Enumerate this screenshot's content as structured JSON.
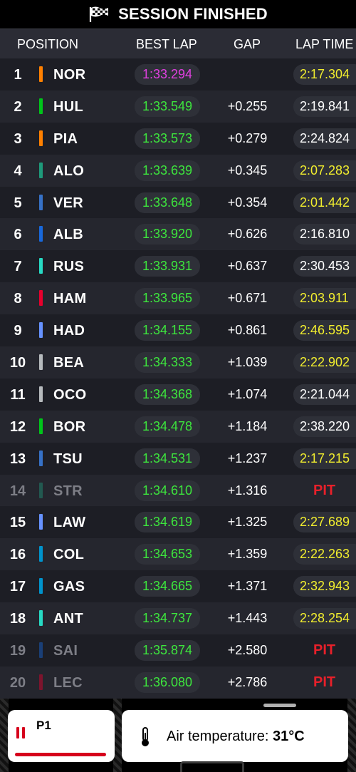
{
  "header": {
    "title": "SESSION FINISHED",
    "icon": "checkered-flag-icon",
    "columns": {
      "position": "POSITION",
      "best_lap": "BEST LAP",
      "gap": "GAP",
      "lap_time": "LAP TIME"
    }
  },
  "colors": {
    "best_lap_purple": "#e040e0",
    "personal_green": "#3de63d",
    "sector_yellow": "#f2ee2e",
    "pit_red": "#e8202a"
  },
  "drivers": [
    {
      "pos": "1",
      "code": "NOR",
      "team_color": "#ff8000",
      "best_lap": "1:33.294",
      "best_color": "purple",
      "gap": "",
      "lap_time": "2:17.304",
      "lap_color": "yellow",
      "pit": false,
      "dim": false
    },
    {
      "pos": "2",
      "code": "HUL",
      "team_color": "#00c41a",
      "best_lap": "1:33.549",
      "best_color": "green",
      "gap": "+0.255",
      "lap_time": "2:19.841",
      "lap_color": "white",
      "pit": false,
      "dim": false
    },
    {
      "pos": "3",
      "code": "PIA",
      "team_color": "#ff8000",
      "best_lap": "1:33.573",
      "best_color": "green",
      "gap": "+0.279",
      "lap_time": "2:24.824",
      "lap_color": "white",
      "pit": false,
      "dim": false
    },
    {
      "pos": "4",
      "code": "ALO",
      "team_color": "#1e9a7a",
      "best_lap": "1:33.639",
      "best_color": "green",
      "gap": "+0.345",
      "lap_time": "2:07.283",
      "lap_color": "yellow",
      "pit": false,
      "dim": false
    },
    {
      "pos": "5",
      "code": "VER",
      "team_color": "#3671c6",
      "best_lap": "1:33.648",
      "best_color": "green",
      "gap": "+0.354",
      "lap_time": "2:01.442",
      "lap_color": "yellow",
      "pit": false,
      "dim": false
    },
    {
      "pos": "6",
      "code": "ALB",
      "team_color": "#1868db",
      "best_lap": "1:33.920",
      "best_color": "green",
      "gap": "+0.626",
      "lap_time": "2:16.810",
      "lap_color": "white",
      "pit": false,
      "dim": false
    },
    {
      "pos": "7",
      "code": "RUS",
      "team_color": "#27d9c3",
      "best_lap": "1:33.931",
      "best_color": "green",
      "gap": "+0.637",
      "lap_time": "2:30.453",
      "lap_color": "white",
      "pit": false,
      "dim": false
    },
    {
      "pos": "8",
      "code": "HAM",
      "team_color": "#e8002d",
      "best_lap": "1:33.965",
      "best_color": "green",
      "gap": "+0.671",
      "lap_time": "2:03.911",
      "lap_color": "yellow",
      "pit": false,
      "dim": false
    },
    {
      "pos": "9",
      "code": "HAD",
      "team_color": "#6692ff",
      "best_lap": "1:34.155",
      "best_color": "green",
      "gap": "+0.861",
      "lap_time": "2:46.595",
      "lap_color": "yellow",
      "pit": false,
      "dim": false
    },
    {
      "pos": "10",
      "code": "BEA",
      "team_color": "#b6babd",
      "best_lap": "1:34.333",
      "best_color": "green",
      "gap": "+1.039",
      "lap_time": "2:22.902",
      "lap_color": "yellow",
      "pit": false,
      "dim": false
    },
    {
      "pos": "11",
      "code": "OCO",
      "team_color": "#b6babd",
      "best_lap": "1:34.368",
      "best_color": "green",
      "gap": "+1.074",
      "lap_time": "2:21.044",
      "lap_color": "white",
      "pit": false,
      "dim": false
    },
    {
      "pos": "12",
      "code": "BOR",
      "team_color": "#00c41a",
      "best_lap": "1:34.478",
      "best_color": "green",
      "gap": "+1.184",
      "lap_time": "2:38.220",
      "lap_color": "white",
      "pit": false,
      "dim": false
    },
    {
      "pos": "13",
      "code": "TSU",
      "team_color": "#3671c6",
      "best_lap": "1:34.531",
      "best_color": "green",
      "gap": "+1.237",
      "lap_time": "2:17.215",
      "lap_color": "yellow",
      "pit": false,
      "dim": false
    },
    {
      "pos": "14",
      "code": "STR",
      "team_color": "#1e9a7a",
      "best_lap": "1:34.610",
      "best_color": "green",
      "gap": "+1.316",
      "lap_time": "PIT",
      "lap_color": "red",
      "pit": true,
      "dim": true
    },
    {
      "pos": "15",
      "code": "LAW",
      "team_color": "#6692ff",
      "best_lap": "1:34.619",
      "best_color": "green",
      "gap": "+1.325",
      "lap_time": "2:27.689",
      "lap_color": "yellow",
      "pit": false,
      "dim": false
    },
    {
      "pos": "16",
      "code": "COL",
      "team_color": "#0093cc",
      "best_lap": "1:34.653",
      "best_color": "green",
      "gap": "+1.359",
      "lap_time": "2:22.263",
      "lap_color": "yellow",
      "pit": false,
      "dim": false
    },
    {
      "pos": "17",
      "code": "GAS",
      "team_color": "#0093cc",
      "best_lap": "1:34.665",
      "best_color": "green",
      "gap": "+1.371",
      "lap_time": "2:32.943",
      "lap_color": "yellow",
      "pit": false,
      "dim": false
    },
    {
      "pos": "18",
      "code": "ANT",
      "team_color": "#27d9c3",
      "best_lap": "1:34.737",
      "best_color": "green",
      "gap": "+1.443",
      "lap_time": "2:28.254",
      "lap_color": "yellow",
      "pit": false,
      "dim": false
    },
    {
      "pos": "19",
      "code": "SAI",
      "team_color": "#1868db",
      "best_lap": "1:35.874",
      "best_color": "green",
      "gap": "+2.580",
      "lap_time": "PIT",
      "lap_color": "red",
      "pit": true,
      "dim": true
    },
    {
      "pos": "20",
      "code": "LEC",
      "team_color": "#e8002d",
      "best_lap": "1:36.080",
      "best_color": "green",
      "gap": "+2.786",
      "lap_time": "PIT",
      "lap_color": "red",
      "pit": true,
      "dim": true
    }
  ],
  "footer": {
    "left_card": {
      "icon": "pause-icon",
      "label": "P1",
      "accent": "#d6001c"
    },
    "right_card": {
      "icon": "thermometer-icon",
      "label": "Air temperature:",
      "value": "31°C"
    }
  }
}
